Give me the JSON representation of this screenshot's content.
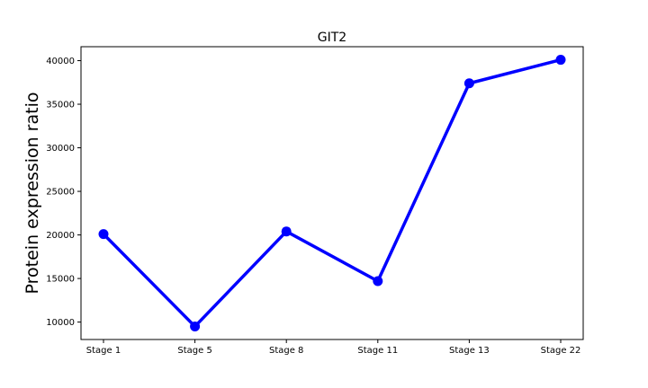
{
  "chart_data": {
    "type": "line",
    "title": "GIT2",
    "xlabel": "",
    "ylabel": "Protein expression ratio",
    "categories": [
      "Stage 1",
      "Stage 5",
      "Stage 8",
      "Stage 11",
      "Stage 13",
      "Stage 22"
    ],
    "series": [
      {
        "values": [
          20100,
          9500,
          20400,
          14700,
          37400,
          40100
        ]
      }
    ],
    "y_ticks": [
      10000,
      15000,
      20000,
      25000,
      30000,
      35000,
      40000
    ],
    "y_tick_labels": [
      "10000",
      "15000",
      "20000",
      "25000",
      "30000",
      "35000",
      "40000"
    ],
    "ylim": [
      8000,
      41600
    ],
    "grid": false,
    "line_color": "#0000ff",
    "marker": "circle"
  }
}
